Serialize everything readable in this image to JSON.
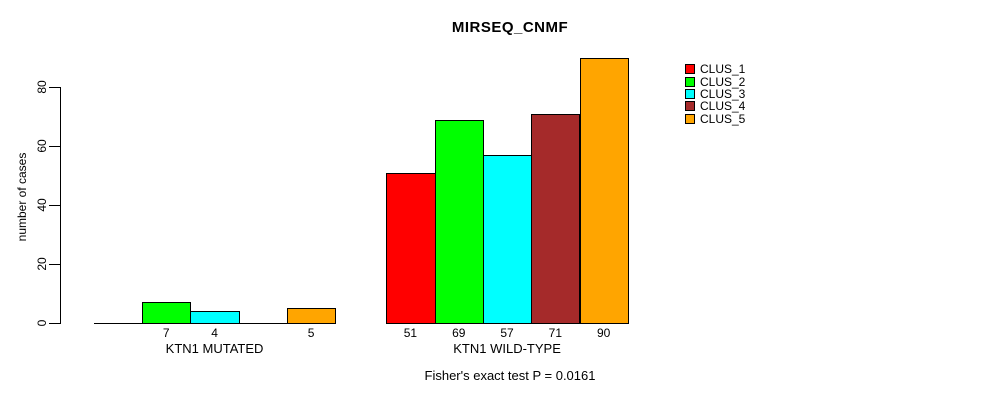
{
  "title": "MIRSEQ_CNMF",
  "chart_data": {
    "type": "bar",
    "title": "MIRSEQ_CNMF",
    "xlabel": "",
    "ylabel": "number of cases",
    "ylim": [
      0,
      90
    ],
    "yticks": [
      0,
      20,
      40,
      60,
      80
    ],
    "grid": false,
    "legend_position": "right",
    "series": [
      {
        "name": "CLUS_1",
        "color": "#FF0000"
      },
      {
        "name": "CLUS_2",
        "color": "#00FF00"
      },
      {
        "name": "CLUS_3",
        "color": "#00FFFF"
      },
      {
        "name": "CLUS_4",
        "color": "#A52A2A"
      },
      {
        "name": "CLUS_5",
        "color": "#FFA500"
      }
    ],
    "groups": [
      {
        "label": "KTN1 MUTATED",
        "values": [
          0,
          7,
          4,
          0,
          5
        ],
        "bar_labels": [
          "",
          "7",
          "4",
          "",
          "5"
        ]
      },
      {
        "label": "KTN1 WILD-TYPE",
        "values": [
          51,
          69,
          57,
          71,
          90
        ],
        "bar_labels": [
          "51",
          "69",
          "57",
          "71",
          "90"
        ]
      }
    ],
    "annotation": "Fisher's exact test P = 0.0161"
  }
}
